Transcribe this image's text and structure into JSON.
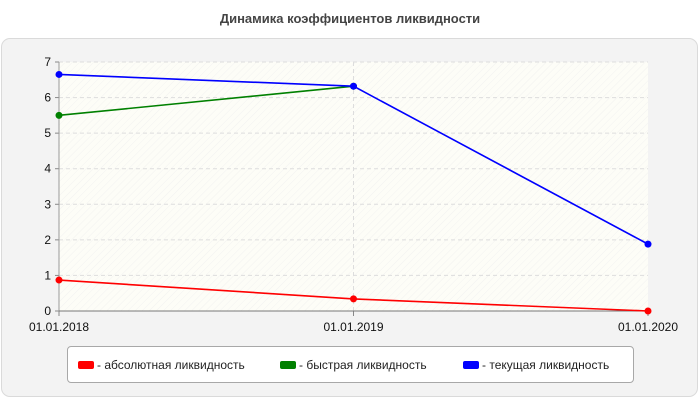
{
  "chart_data": {
    "type": "line",
    "title": "Динамика коэффициентов ликвидности",
    "x": [
      "01.01.2018",
      "01.01.2019",
      "01.01.2020"
    ],
    "ylim": [
      0,
      7
    ],
    "yticks": [
      "0",
      "1",
      "2",
      "3",
      "4",
      "5",
      "6",
      "7"
    ],
    "grid": true,
    "legend_position": "bottom",
    "series": [
      {
        "name": "- абсолютная ликвидность",
        "color": "#ff0000",
        "values": [
          0.87,
          0.34,
          0.0
        ]
      },
      {
        "name": "- быстрая ликвидность",
        "color": "#008000",
        "values": [
          5.5,
          6.32,
          null
        ]
      },
      {
        "name": "- текущая ликвидность",
        "color": "#0000ff",
        "values": [
          6.65,
          6.32,
          1.88
        ]
      }
    ]
  }
}
